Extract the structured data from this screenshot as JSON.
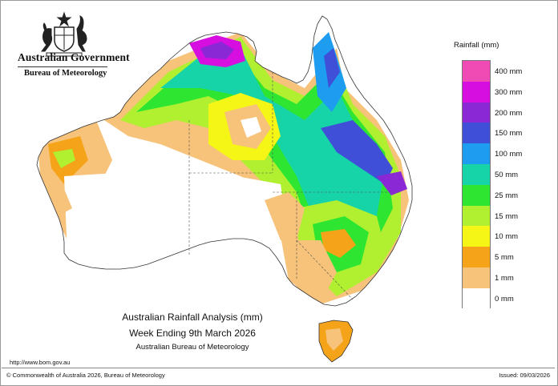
{
  "header": {
    "government": "Australian Government",
    "bureau": "Bureau of Meteorology"
  },
  "map": {
    "caption_title": "Australian Rainfall Analysis (mm)",
    "caption_period": "Week Ending 9th March 2026",
    "caption_source": "Australian Bureau of Meteorology"
  },
  "legend": {
    "title": "Rainfall (mm)",
    "items": [
      {
        "label": "400 mm",
        "color": "#f04bb4"
      },
      {
        "label": "300 mm",
        "color": "#d60fe0"
      },
      {
        "label": "200 mm",
        "color": "#8a28d6"
      },
      {
        "label": "150 mm",
        "color": "#3f4fd8"
      },
      {
        "label": "100 mm",
        "color": "#1e9cf0"
      },
      {
        "label": "50 mm",
        "color": "#16d3a8"
      },
      {
        "label": "25 mm",
        "color": "#2ee632"
      },
      {
        "label": "15 mm",
        "color": "#b0f030"
      },
      {
        "label": "10 mm",
        "color": "#f5f516"
      },
      {
        "label": "5 mm",
        "color": "#f5a419"
      },
      {
        "label": "1 mm",
        "color": "#f7c27a"
      },
      {
        "label": "0 mm",
        "color": "#ffffff"
      }
    ]
  },
  "footer": {
    "url": "http://www.bom.gov.au",
    "copyright": "© Commonwealth of Australia 2026, Bureau of Meteorology",
    "issued": "Issued: 09/03/2026"
  }
}
